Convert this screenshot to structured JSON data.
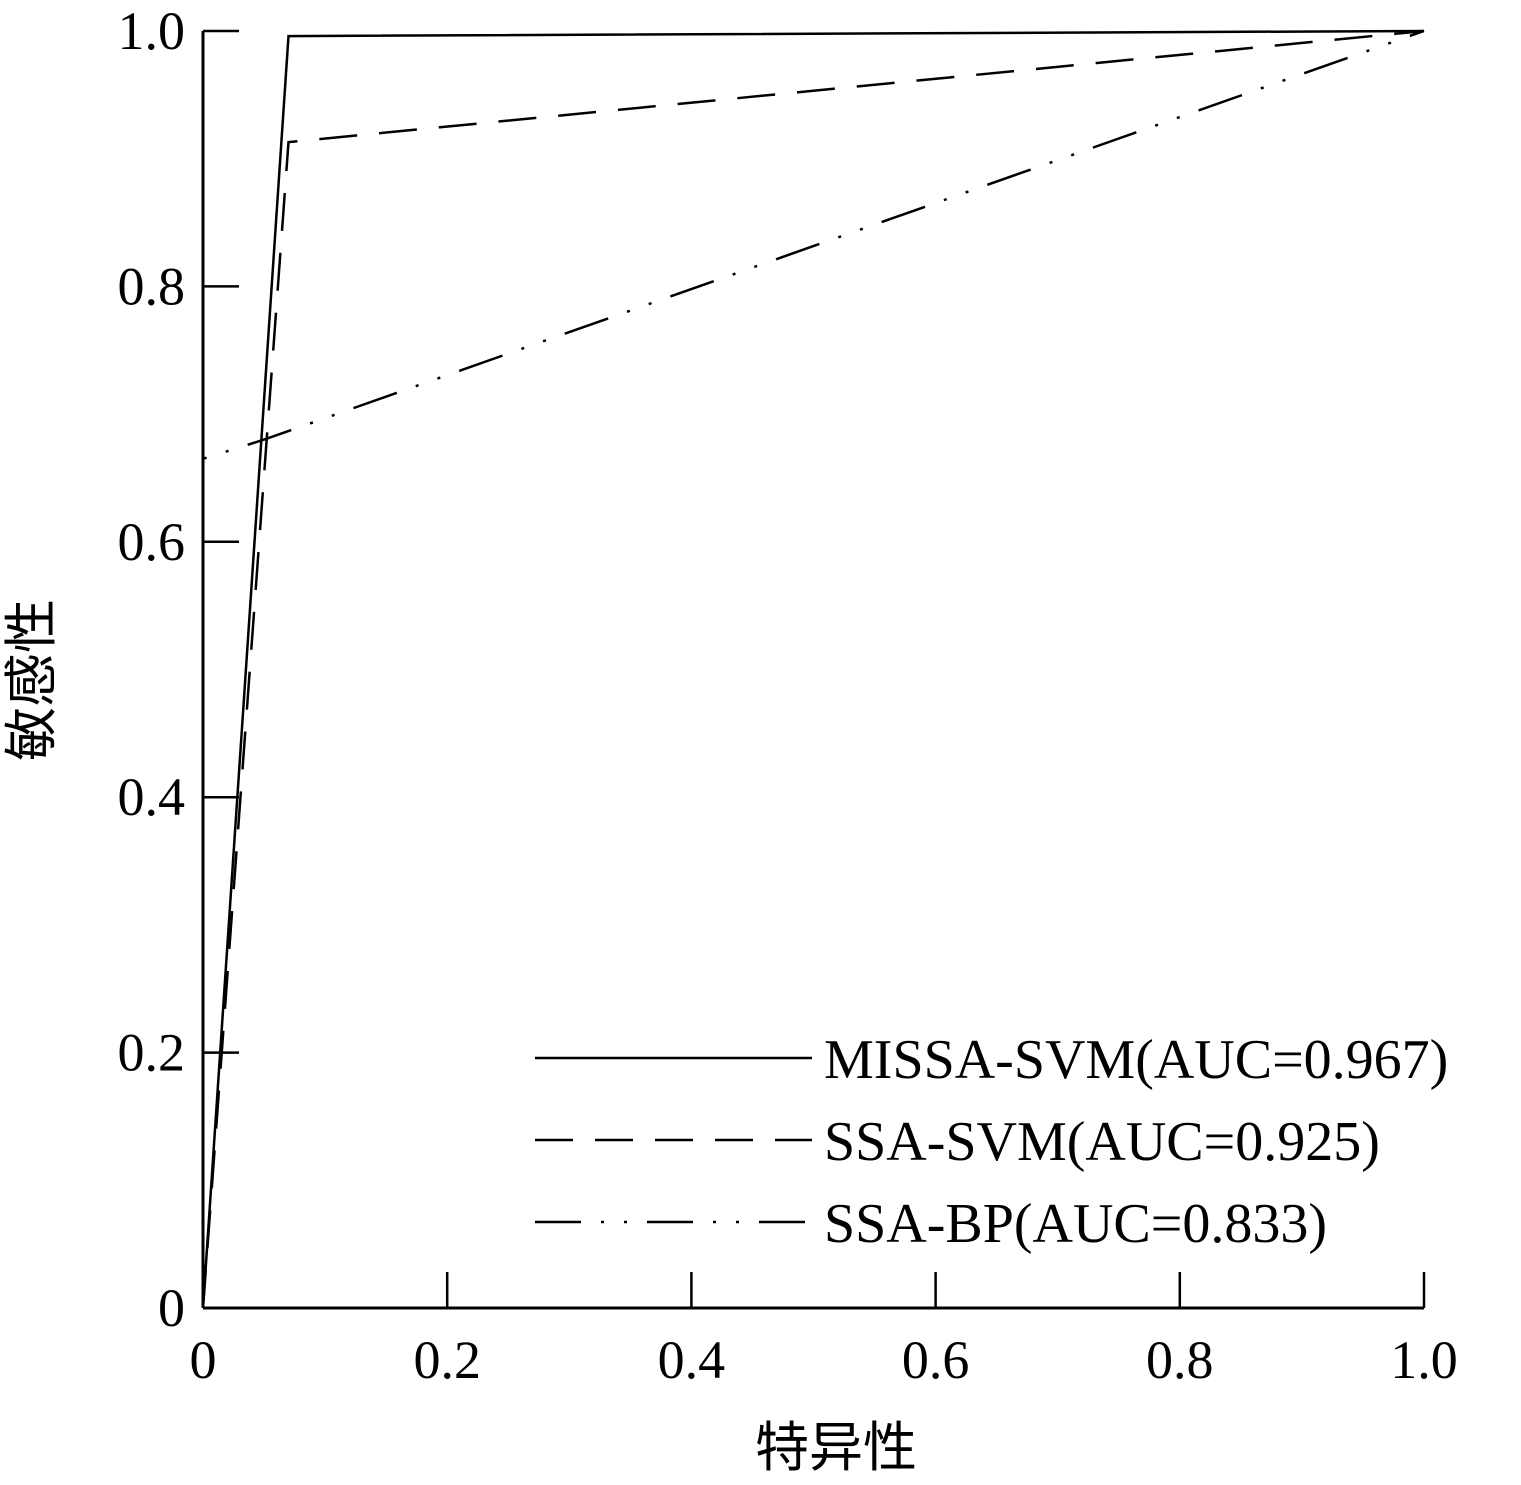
{
  "chart_data": {
    "type": "line",
    "xlabel": "特异性",
    "ylabel": "敏感性",
    "xlim": [
      0,
      1.0
    ],
    "ylim": [
      0,
      1.0
    ],
    "x_ticks": [
      {
        "value": 0,
        "label": "0"
      },
      {
        "value": 0.2,
        "label": "0.2"
      },
      {
        "value": 0.4,
        "label": "0.4"
      },
      {
        "value": 0.6,
        "label": "0.6"
      },
      {
        "value": 0.8,
        "label": "0.8"
      },
      {
        "value": 1.0,
        "label": "1.0"
      }
    ],
    "y_ticks": [
      {
        "value": 0,
        "label": "0"
      },
      {
        "value": 0.2,
        "label": "0.2"
      },
      {
        "value": 0.4,
        "label": "0.4"
      },
      {
        "value": 0.6,
        "label": "0.6"
      },
      {
        "value": 0.8,
        "label": "0.8"
      },
      {
        "value": 1.0,
        "label": "1.0"
      }
    ],
    "grid": false,
    "legend_position": "bottom-right",
    "series": [
      {
        "name": "MISSA-SVM(AUC=0.967)",
        "style": "solid",
        "color": "#000000",
        "points": [
          [
            0,
            0
          ],
          [
            0.07,
            0.996
          ],
          [
            1.0,
            1.0
          ]
        ]
      },
      {
        "name": "SSA-SVM(AUC=0.925)",
        "style": "dashed",
        "color": "#000000",
        "points": [
          [
            0,
            0
          ],
          [
            0.07,
            0.913
          ],
          [
            1.0,
            1.0
          ]
        ]
      },
      {
        "name": "SSA-BP(AUC=0.833)",
        "style": "dash-dot-dot",
        "color": "#000000",
        "points": [
          [
            0,
            0
          ],
          [
            0,
            0.665
          ],
          [
            0.05,
            0.68
          ],
          [
            1.0,
            1.0
          ]
        ]
      }
    ]
  }
}
